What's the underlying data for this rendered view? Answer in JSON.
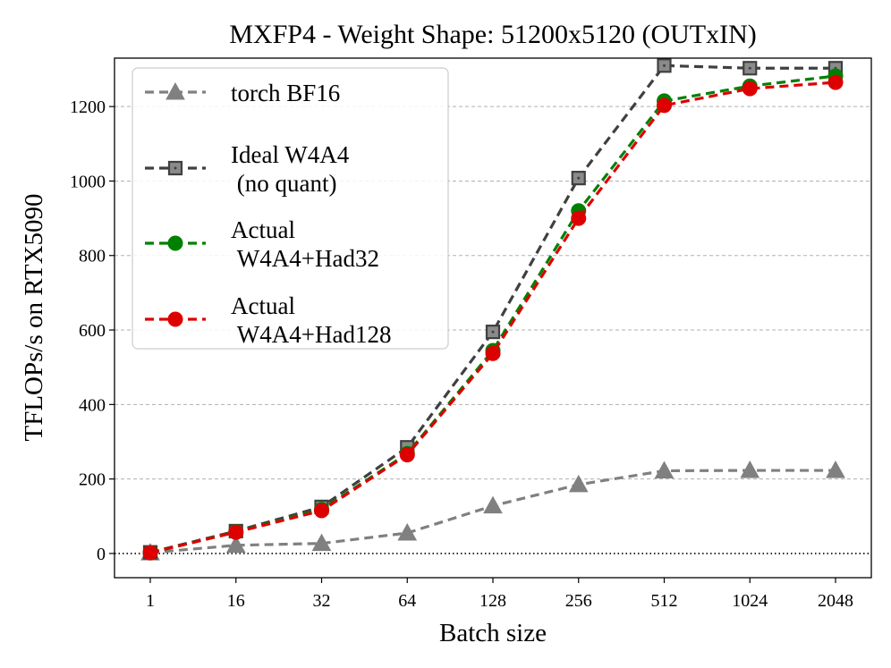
{
  "chart_data": {
    "type": "line",
    "title": "MXFP4 - Weight Shape: 51200x5120 (OUTxIN)",
    "xlabel": "Batch size",
    "ylabel": "TFLOPs/s on RTX5090",
    "categories": [
      "1",
      "16",
      "32",
      "64",
      "128",
      "256",
      "512",
      "1024",
      "2048"
    ],
    "ylim": [
      -65,
      1330
    ],
    "yticks": [
      0,
      200,
      400,
      600,
      800,
      1000,
      1200
    ],
    "grid": "horizontal dashed",
    "zero_line": "dotted",
    "legend_position": "upper-left",
    "series": [
      {
        "name": "torch BF16",
        "legend_lines": [
          "torch BF16"
        ],
        "marker": "triangle",
        "color": "#808080",
        "values": [
          2,
          22,
          27,
          55,
          128,
          185,
          222,
          223,
          223
        ]
      },
      {
        "name": "Ideal W4A4 (no quant)",
        "legend_lines": [
          "Ideal W4A4",
          " (no quant)"
        ],
        "marker": "square",
        "color": "#404040",
        "values": [
          3,
          60,
          125,
          285,
          595,
          1008,
          1310,
          1303,
          1303
        ]
      },
      {
        "name": "Actual W4A4+Had32",
        "legend_lines": [
          "Actual",
          " W4A4+Had32"
        ],
        "marker": "circle",
        "color": "#008000",
        "values": [
          2,
          58,
          118,
          268,
          545,
          920,
          1215,
          1255,
          1282
        ]
      },
      {
        "name": "Actual W4A4+Had128",
        "legend_lines": [
          "Actual",
          " W4A4+Had128"
        ],
        "marker": "circle",
        "color": "#dd0000",
        "values": [
          2,
          57,
          115,
          265,
          537,
          900,
          1203,
          1248,
          1265
        ]
      }
    ]
  }
}
